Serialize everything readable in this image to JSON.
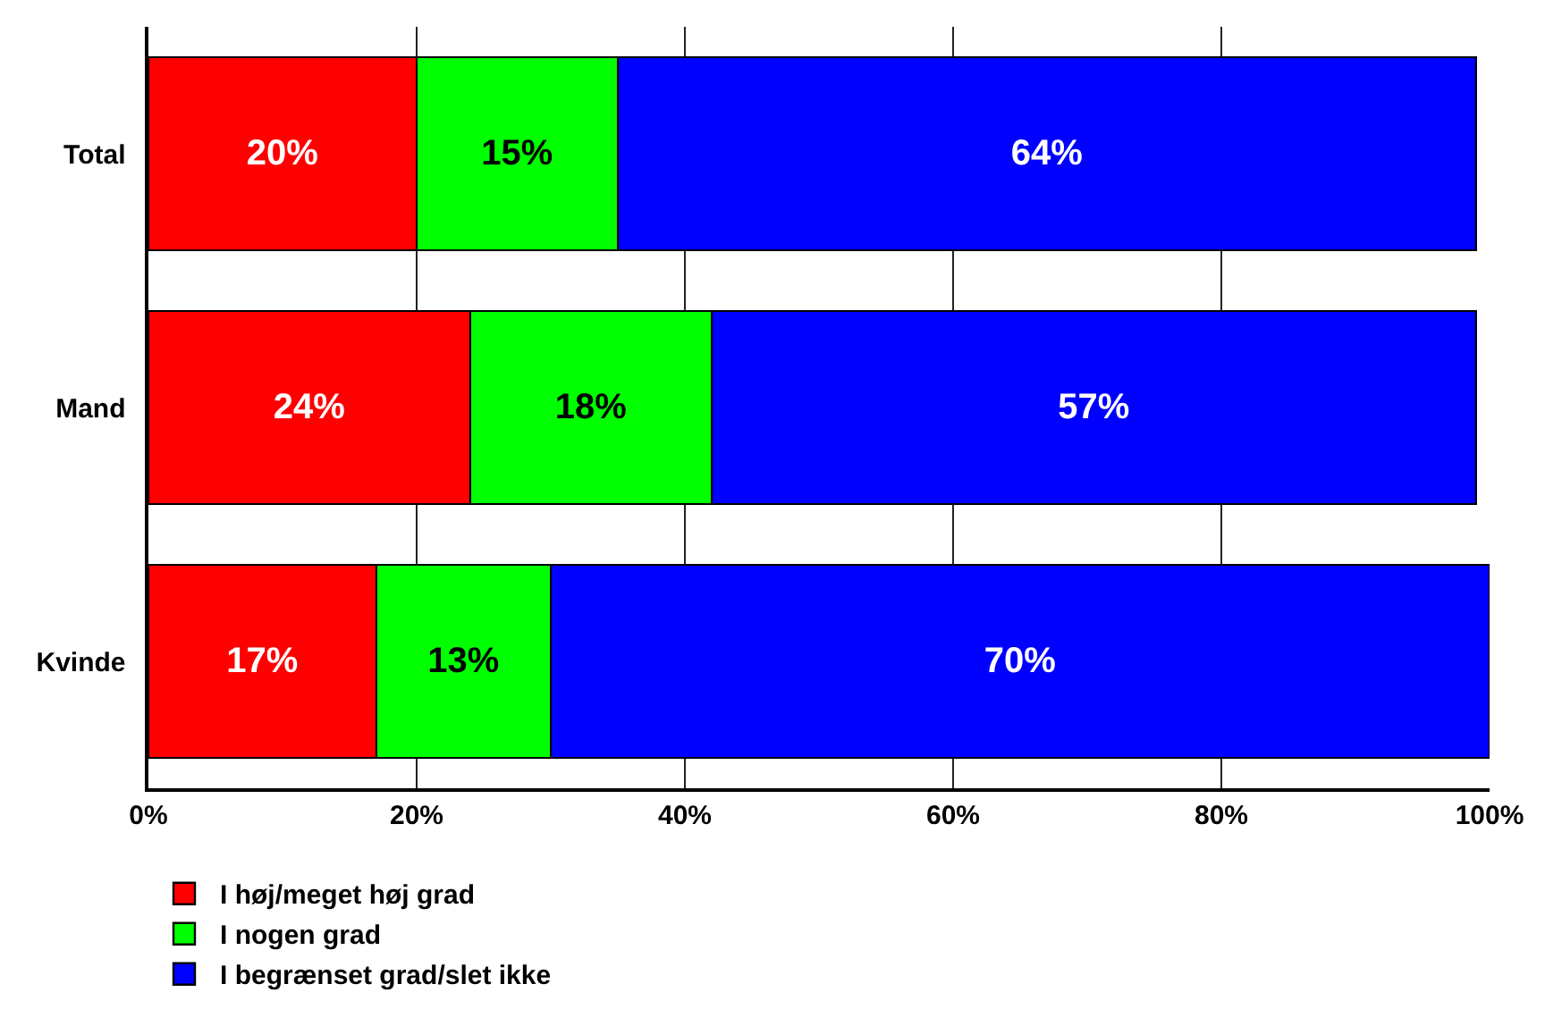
{
  "chart_data": {
    "type": "bar",
    "orientation": "horizontal",
    "stacked": true,
    "categories": [
      "Total",
      "Mand",
      "Kvinde"
    ],
    "series": [
      {
        "name": "I høj/meget høj grad",
        "color": "#ff0000",
        "values": [
          20,
          24,
          17
        ],
        "value_labels": [
          "20%",
          "24%",
          "17%"
        ]
      },
      {
        "name": "I nogen grad",
        "color": "#00ff00",
        "values": [
          15,
          18,
          13
        ],
        "value_labels": [
          "15%",
          "18%",
          "13%"
        ]
      },
      {
        "name": "I begrænset grad/slet ikke",
        "color": "#0000ff",
        "values": [
          64,
          57,
          70
        ],
        "value_labels": [
          "64%",
          "57%",
          "70%"
        ]
      }
    ],
    "xlim": [
      0,
      100
    ],
    "xticks": [
      {
        "value": 0,
        "label": "0%"
      },
      {
        "value": 20,
        "label": "20%"
      },
      {
        "value": 40,
        "label": "40%"
      },
      {
        "value": 60,
        "label": "60%"
      },
      {
        "value": 80,
        "label": "80%"
      },
      {
        "value": 100,
        "label": "100%"
      }
    ],
    "grid": "x",
    "legend": "bottom left"
  }
}
